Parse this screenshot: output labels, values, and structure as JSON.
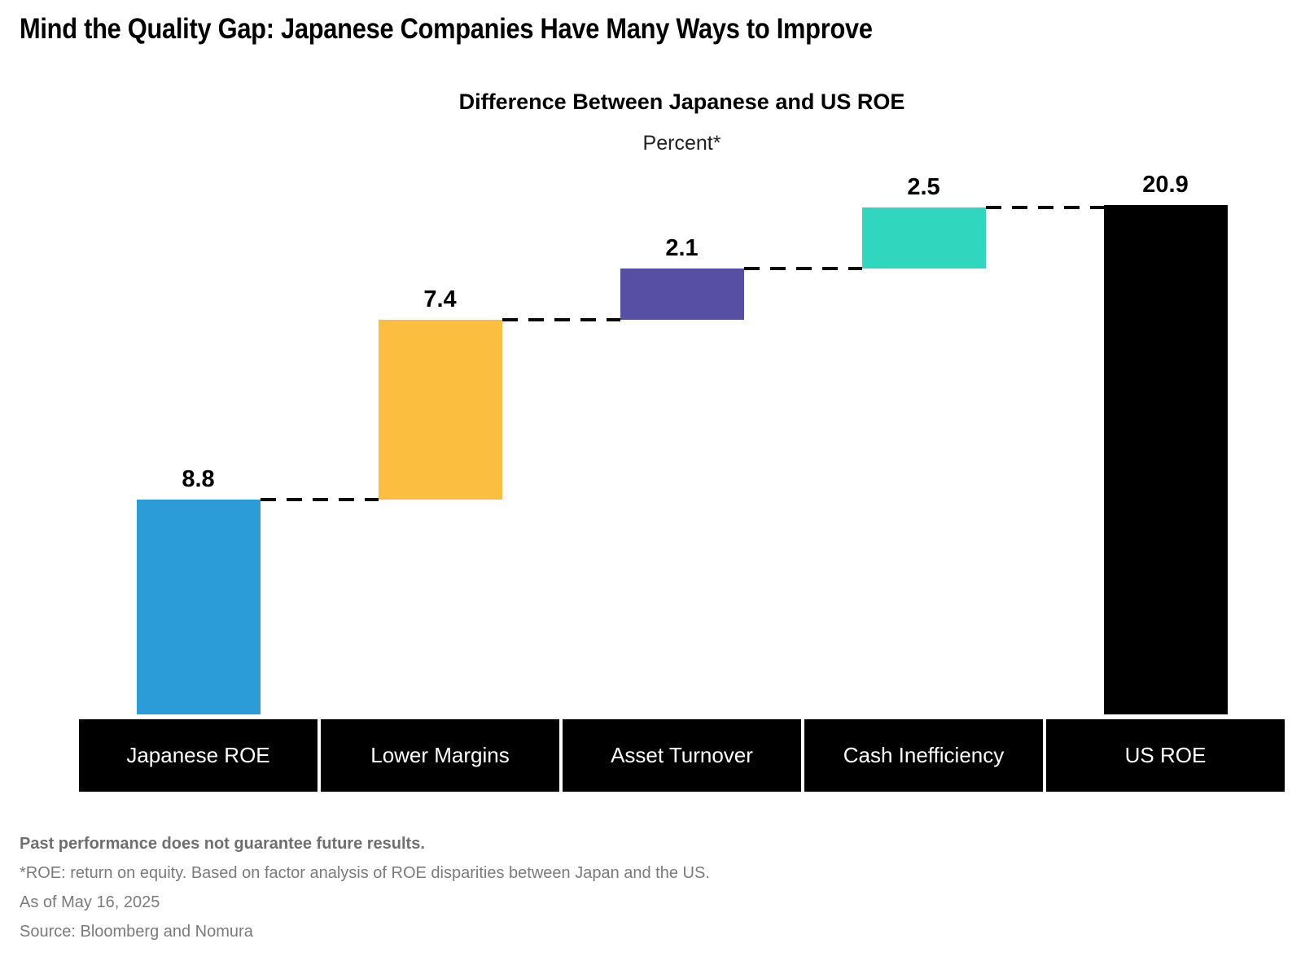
{
  "page_title": "Mind the Quality Gap: Japanese Companies Have Many Ways to Improve",
  "chart_data": {
    "type": "bar",
    "subtype": "waterfall",
    "title": "Difference Between Japanese and US ROE",
    "subtitle": "Percent*",
    "categories": [
      "Japanese ROE",
      "Lower Margins",
      "Asset Turnover",
      "Cash Inefficiency",
      "US ROE"
    ],
    "values": [
      8.8,
      7.4,
      2.1,
      2.5,
      20.9
    ],
    "segment_start": [
      0,
      8.8,
      16.2,
      18.3,
      0
    ],
    "segment_end": [
      8.8,
      16.2,
      18.3,
      20.8,
      20.9
    ],
    "value_labels": [
      "8.8",
      "7.4",
      "2.1",
      "2.5",
      "20.9"
    ],
    "colors": [
      "#2B9CD8",
      "#FCBE3E",
      "#574FA3",
      "#30D6BE",
      "#000000"
    ],
    "connector_levels": [
      8.8,
      16.2,
      18.3,
      20.8
    ],
    "connector_style": "dashed",
    "ylim": [
      0,
      22
    ],
    "grid": false,
    "legend": "none",
    "category_label_bg": "#000000",
    "category_label_color": "#ffffff"
  },
  "footnotes": {
    "disclaimer": "Past performance does not guarantee future results.",
    "definition": "*ROE: return on equity. Based on factor analysis of ROE disparities between Japan and the US.",
    "as_of": "As of May 16, 2025",
    "source": "Source: Bloomberg and Nomura"
  }
}
